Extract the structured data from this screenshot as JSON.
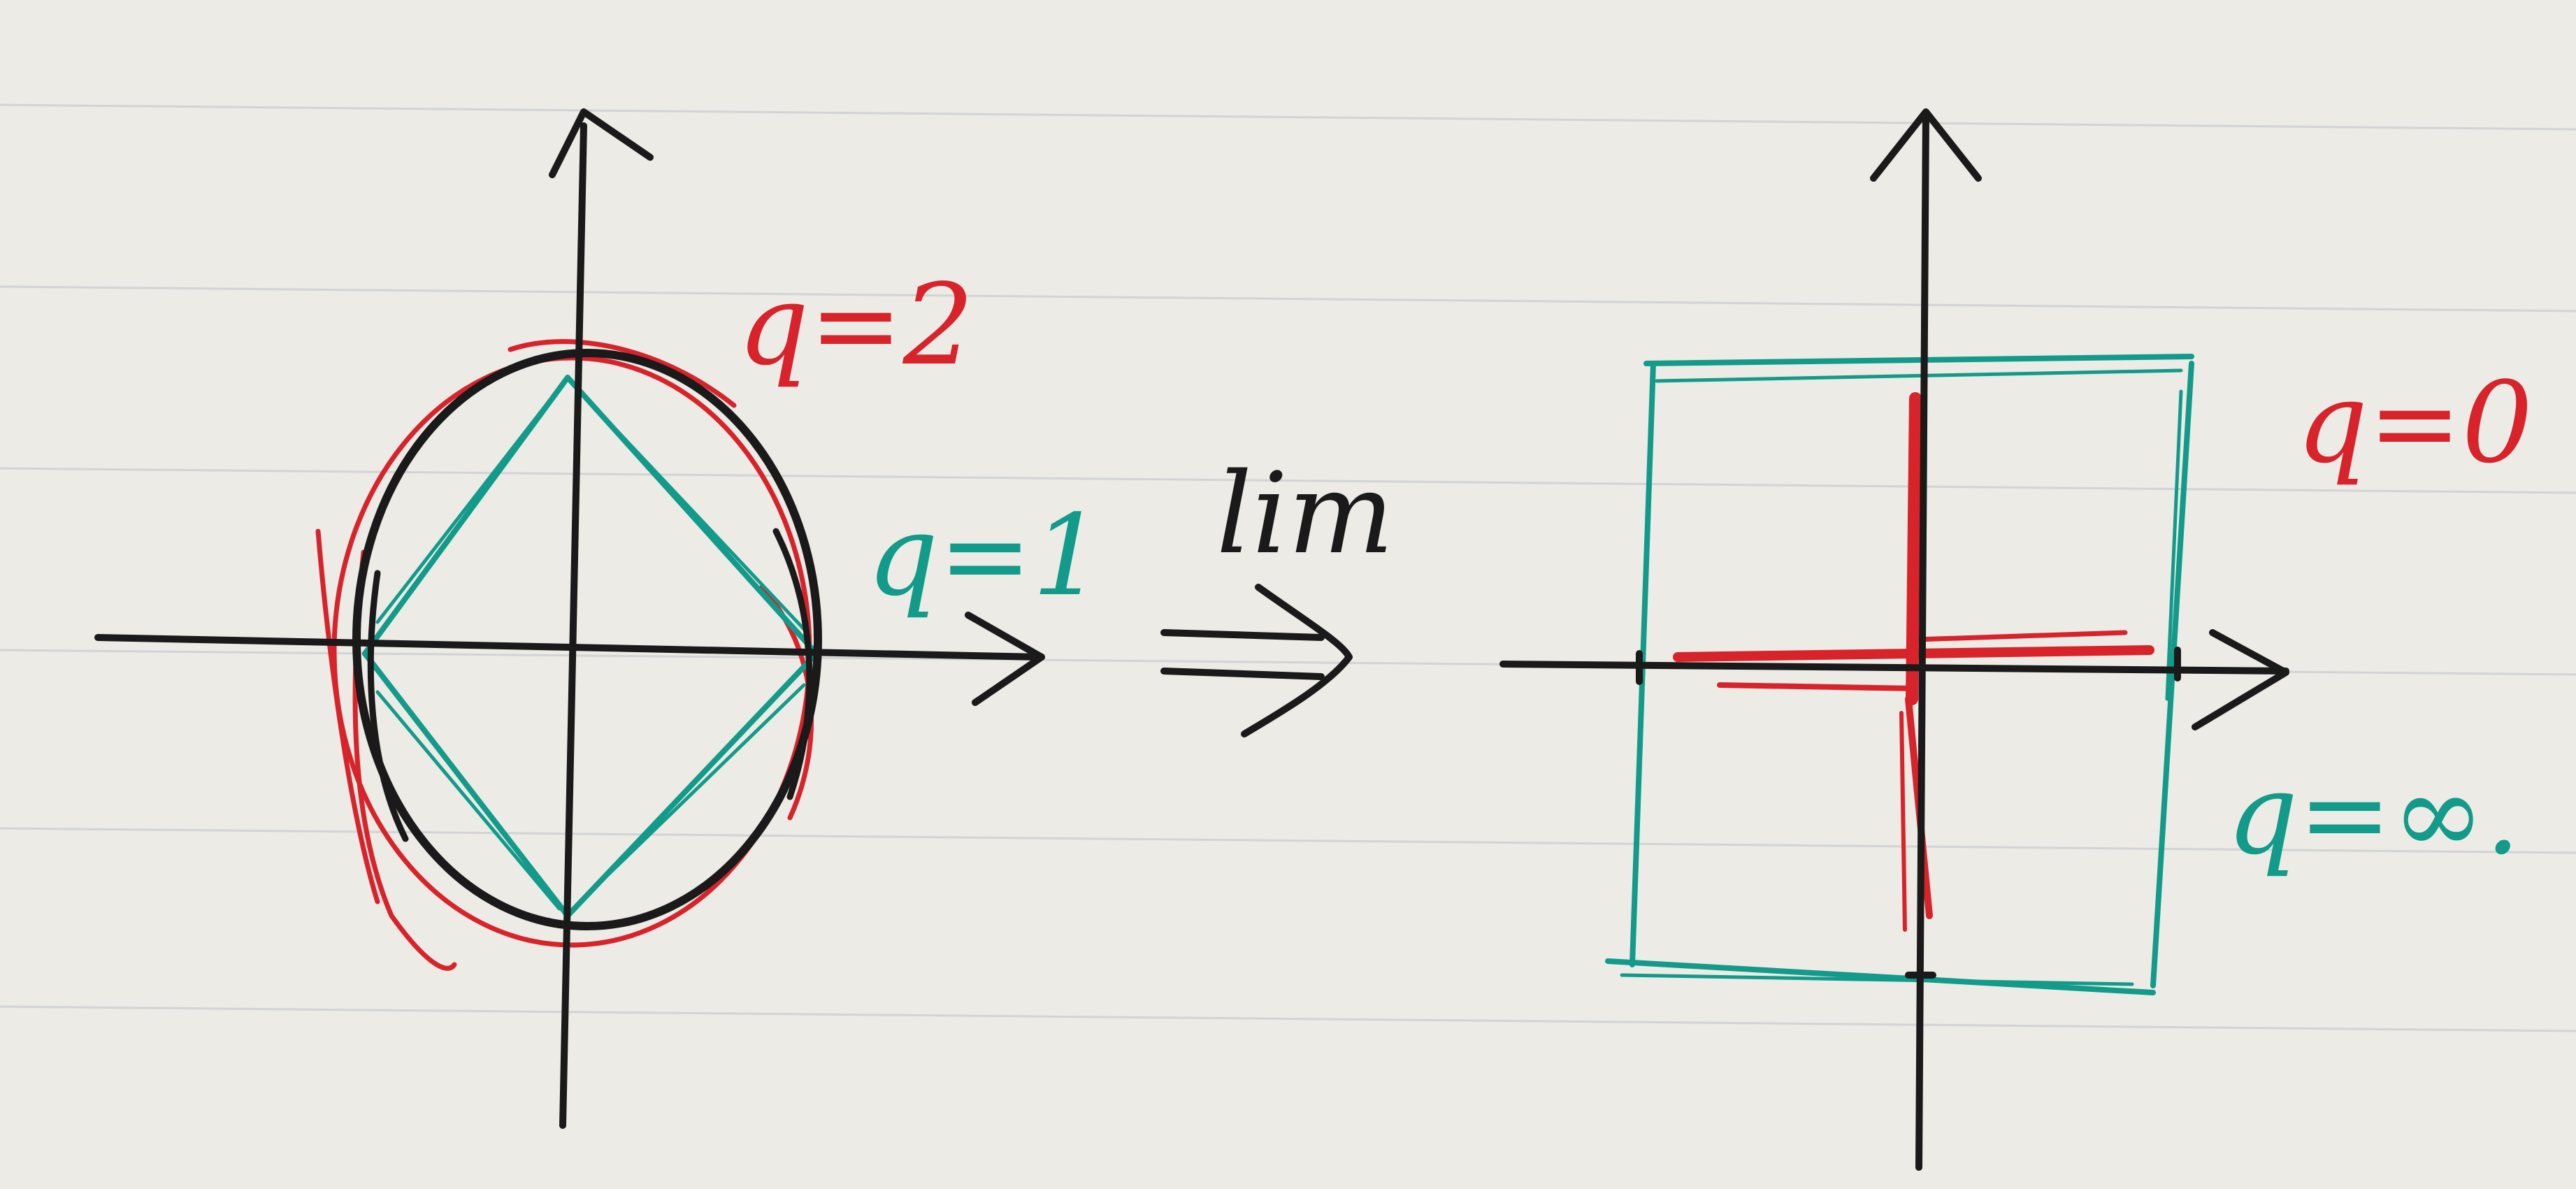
{
  "colors": {
    "paper": "#ecebe5",
    "rule_line": "#c9ccd0",
    "ink_black": "#1a1a1a",
    "ink_red": "#d8232a",
    "ink_teal": "#129a8a"
  },
  "left_diagram": {
    "label_q2": "q=2",
    "label_q1": "q=1"
  },
  "transition": {
    "label": "lim",
    "arrow_icon": "double-arrow-right-icon"
  },
  "right_diagram": {
    "label_q0": "q=0",
    "label_qinf": "q=∞."
  }
}
